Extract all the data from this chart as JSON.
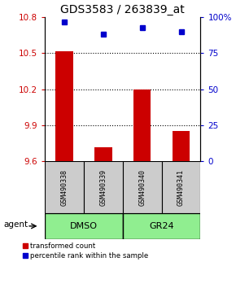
{
  "title": "GDS3583 / 263839_at",
  "samples": [
    "GSM490338",
    "GSM490339",
    "GSM490340",
    "GSM490341"
  ],
  "red_values": [
    10.52,
    9.72,
    10.2,
    9.85
  ],
  "blue_values": [
    97,
    88,
    93,
    90
  ],
  "ylim_left": [
    9.6,
    10.8
  ],
  "ylim_right": [
    0,
    100
  ],
  "yticks_left": [
    9.6,
    9.9,
    10.2,
    10.5,
    10.8
  ],
  "ytick_labels_left": [
    "9.6",
    "9.9",
    "10.2",
    "10.5",
    "10.8"
  ],
  "yticks_right": [
    0,
    25,
    50,
    75,
    100
  ],
  "ytick_labels_right": [
    "0",
    "25",
    "50",
    "75",
    "100%"
  ],
  "hlines": [
    9.9,
    10.2,
    10.5
  ],
  "group_colors": [
    "#90EE90",
    "#90EE90"
  ],
  "group_labels": [
    "DMSO",
    "GR24"
  ],
  "sample_box_color": "#cccccc",
  "bar_color": "#cc0000",
  "dot_color": "#0000cc",
  "agent_label": "agent",
  "legend_red": "transformed count",
  "legend_blue": "percentile rank within the sample",
  "title_fontsize": 10,
  "tick_fontsize": 7.5,
  "label_fontsize": 7
}
